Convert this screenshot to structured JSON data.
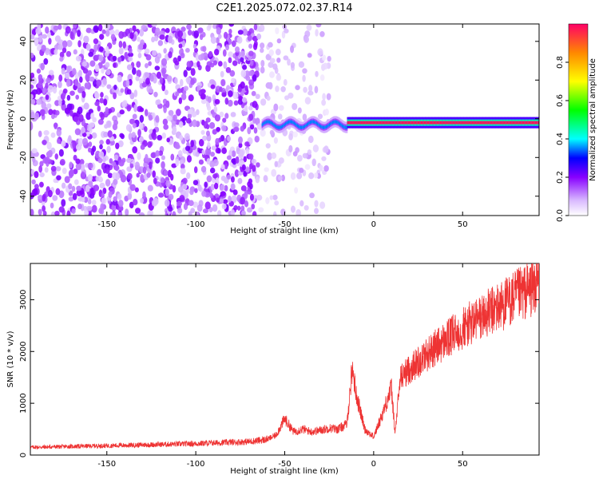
{
  "title": "C2E1.2025.072.02.37.R14",
  "chart_data": [
    {
      "type": "heatmap",
      "xlabel": "Height of straight line (km)",
      "ylabel": "Frequency (Hz)",
      "xlim": [
        -193,
        93
      ],
      "ylim": [
        -50,
        49
      ],
      "xticks": [
        -150,
        -100,
        -50,
        0,
        50
      ],
      "yticks": [
        -40,
        -20,
        0,
        20,
        40
      ],
      "colorbar": {
        "label": "Normalized spectral amplitude",
        "range": [
          0,
          1
        ],
        "ticks": [
          0.0,
          0.2,
          0.4,
          0.6,
          0.8
        ]
      },
      "features": [
        {
          "kind": "broadband-noise",
          "x_range": [
            -193,
            -65
          ],
          "amplitude": 0.12
        },
        {
          "kind": "sparse-noise",
          "x_range": [
            -65,
            -25
          ],
          "amplitude": 0.06
        },
        {
          "kind": "narrowband-line",
          "x_range": [
            -63,
            -15
          ],
          "freq_hz": -3,
          "amplitude": 0.35
        },
        {
          "kind": "narrowband-line",
          "x_range": [
            -15,
            93
          ],
          "freq_hz": -2,
          "amplitude": 0.98
        }
      ]
    },
    {
      "type": "line",
      "xlabel": "Height of straight line (km)",
      "ylabel": "SNR (10 * v/v)",
      "xlim": [
        -193,
        93
      ],
      "ylim": [
        0,
        3700
      ],
      "xticks": [
        -150,
        -100,
        -50,
        0,
        50
      ],
      "yticks": [
        0,
        1000,
        2000,
        3000
      ],
      "series": [
        {
          "color": "#ee3333",
          "x": [
            -193,
            -150,
            -100,
            -70,
            -60,
            -55,
            -50,
            -45,
            -40,
            -35,
            -30,
            -25,
            -20,
            -15,
            -12,
            -10,
            -5,
            0,
            5,
            10,
            12,
            15,
            20,
            30,
            40,
            50,
            60,
            70,
            80,
            90,
            93
          ],
          "y": [
            150,
            180,
            220,
            260,
            300,
            380,
            700,
            450,
            500,
            450,
            480,
            520,
            500,
            600,
            1700,
            1200,
            500,
            350,
            800,
            1300,
            400,
            1500,
            1650,
            1950,
            2200,
            2450,
            2650,
            2850,
            3050,
            3250,
            3350
          ]
        }
      ]
    }
  ]
}
